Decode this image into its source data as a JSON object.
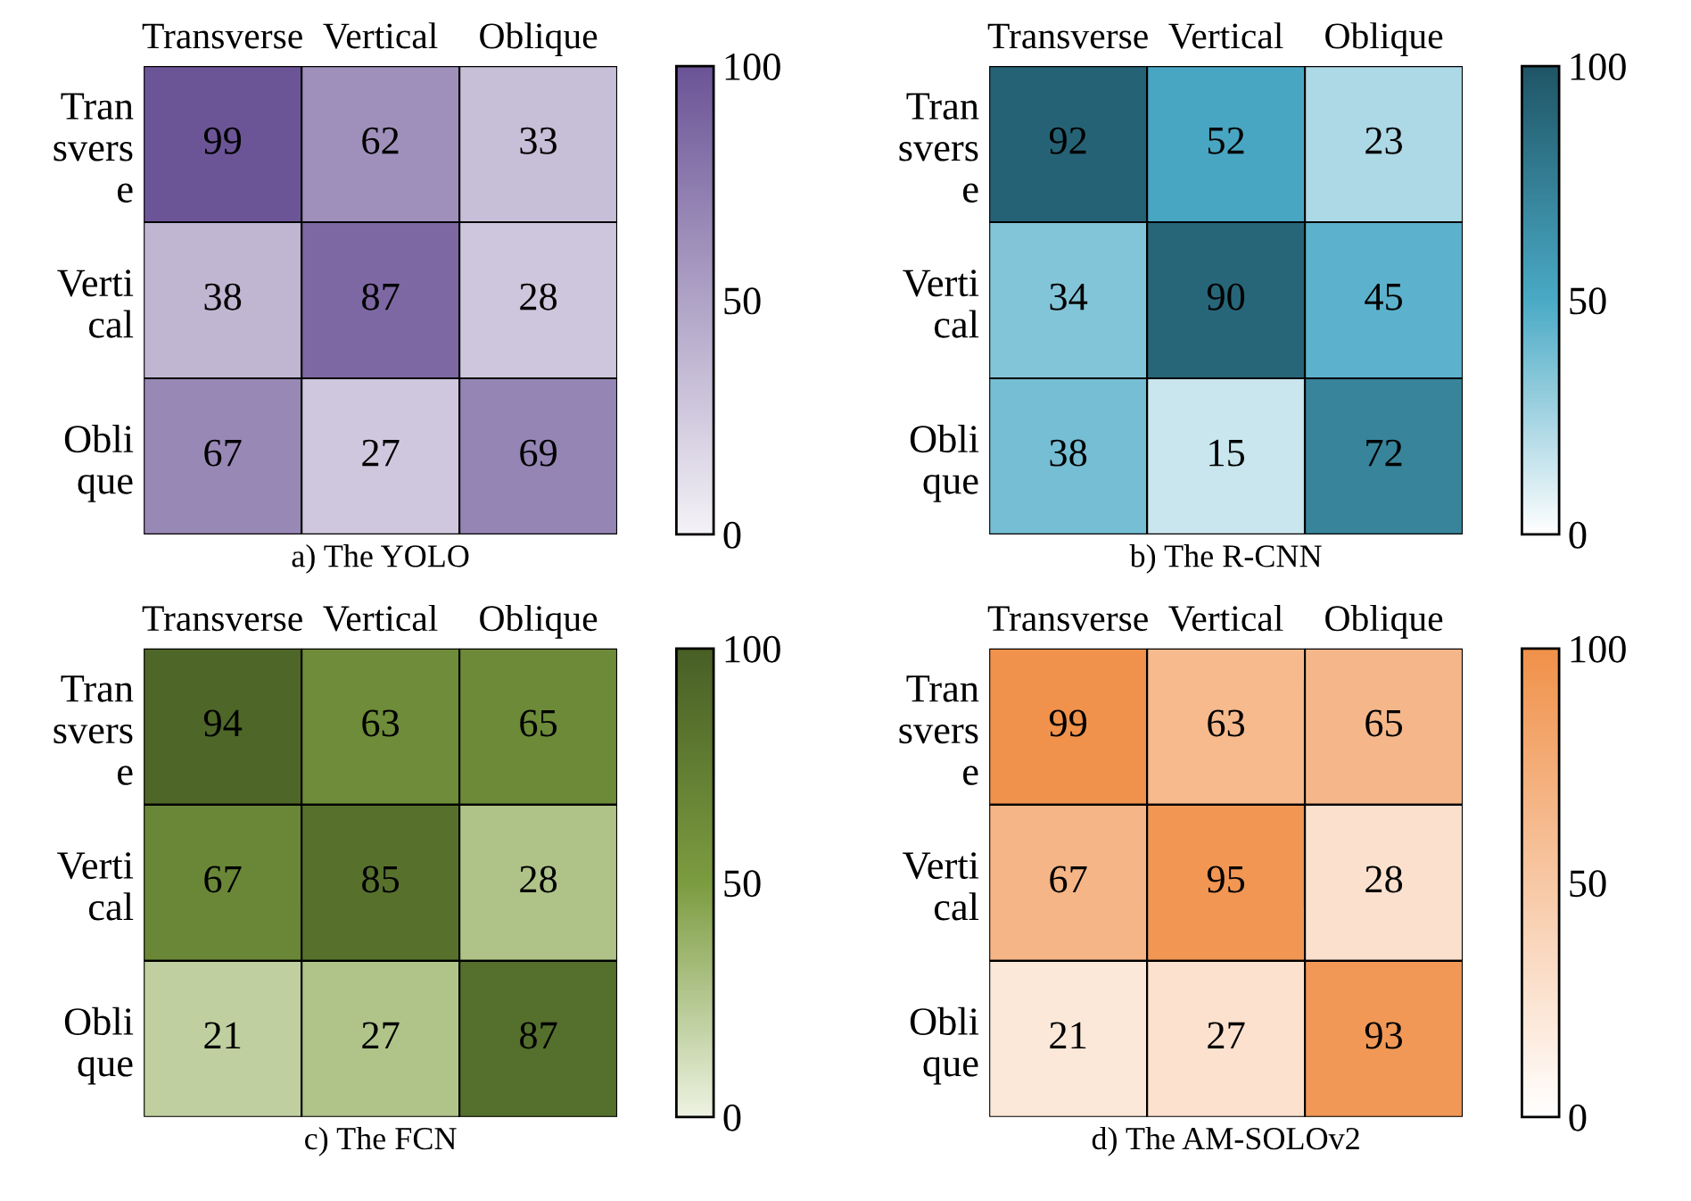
{
  "chart_data": [
    {
      "type": "heatmap",
      "title": "a) The YOLO",
      "categories": [
        "Transverse",
        "Vertical",
        "Oblique"
      ],
      "y_categories": [
        "Tran\nsvers\ne",
        "Verti\ncal",
        "Obli\nque"
      ],
      "cells": [
        [
          99,
          62,
          33
        ],
        [
          38,
          87,
          28
        ],
        [
          67,
          27,
          69
        ]
      ],
      "clim": [
        0,
        100
      ],
      "cticks": [
        0,
        50,
        100
      ],
      "colors": [
        "#f4f2f7",
        "#6b5496"
      ],
      "data_labels": true
    },
    {
      "type": "heatmap",
      "title": "b) The R-CNN",
      "categories": [
        "Transverse",
        "Vertical",
        "Oblique"
      ],
      "y_categories": [
        "Tran\nsvers\ne",
        "Verti\ncal",
        "Obli\nque"
      ],
      "cells": [
        [
          92,
          52,
          23
        ],
        [
          34,
          90,
          45
        ],
        [
          38,
          15,
          72
        ]
      ],
      "clim": [
        0,
        100
      ],
      "cticks": [
        0,
        50,
        100
      ],
      "colors": [
        "#ffffff",
        "#4aaac6",
        "#1f5566"
      ],
      "data_labels": true
    },
    {
      "type": "heatmap",
      "title": "c) The FCN",
      "categories": [
        "Transverse",
        "Vertical",
        "Oblique"
      ],
      "y_categories": [
        "Tran\nsvers\ne",
        "Verti\ncal",
        "Obli\nque"
      ],
      "cells": [
        [
          94,
          63,
          65
        ],
        [
          67,
          85,
          28
        ],
        [
          21,
          27,
          87
        ]
      ],
      "clim": [
        0,
        100
      ],
      "cticks": [
        0,
        50,
        100
      ],
      "colors": [
        "#eef3e2",
        "#7c9c40",
        "#485f25"
      ],
      "data_labels": true
    },
    {
      "type": "heatmap",
      "title": "d) The AM-SOLOv2",
      "categories": [
        "Transverse",
        "Vertical",
        "Oblique"
      ],
      "y_categories": [
        "Tran\nsvers\ne",
        "Verti\ncal",
        "Obli\nque"
      ],
      "cells": [
        [
          99,
          63,
          65
        ],
        [
          67,
          95,
          28
        ],
        [
          21,
          27,
          93
        ]
      ],
      "clim": [
        0,
        100
      ],
      "cticks": [
        0,
        50,
        100
      ],
      "colors": [
        "#ffffff",
        "#f0914a"
      ],
      "data_labels": true
    }
  ]
}
